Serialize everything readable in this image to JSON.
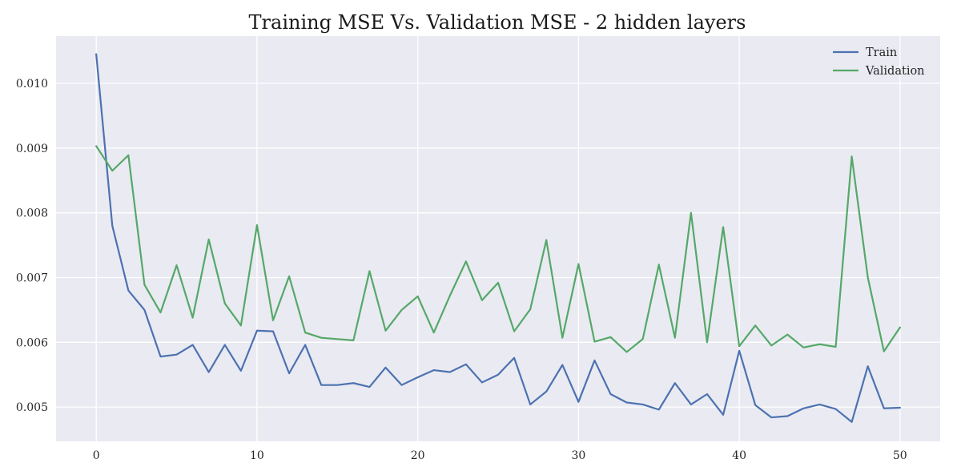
{
  "chart_data": {
    "type": "line",
    "title": "Training MSE Vs. Validation MSE - 2 hidden layers",
    "xlabel": "",
    "ylabel": "",
    "xlim": [
      -2.5,
      52.5
    ],
    "ylim": [
      0.00447,
      0.01073
    ],
    "x_ticks": [
      0,
      10,
      20,
      30,
      40,
      50
    ],
    "x_tick_labels": [
      "0",
      "10",
      "20",
      "30",
      "40",
      "50"
    ],
    "y_ticks": [
      0.005,
      0.006,
      0.007,
      0.008,
      0.009,
      0.01
    ],
    "y_tick_labels": [
      "0.005",
      "0.006",
      "0.007",
      "0.008",
      "0.009",
      "0.010"
    ],
    "grid": true,
    "legend_position": "top-right",
    "series": [
      {
        "name": "Train",
        "color": "#4c72b0",
        "x": [
          0,
          1,
          2,
          3,
          4,
          5,
          6,
          7,
          8,
          9,
          10,
          11,
          12,
          13,
          14,
          15,
          16,
          17,
          18,
          19,
          20,
          21,
          22,
          23,
          24,
          25,
          26,
          27,
          28,
          29,
          30,
          31,
          32,
          33,
          34,
          35,
          36,
          37,
          38,
          39,
          40,
          41,
          42,
          43,
          44,
          45,
          46,
          47,
          48,
          49,
          50
        ],
        "values": [
          0.01045,
          0.0078,
          0.0068,
          0.0065,
          0.00578,
          0.00581,
          0.00596,
          0.00554,
          0.00596,
          0.00556,
          0.00618,
          0.00617,
          0.00552,
          0.00596,
          0.00534,
          0.00534,
          0.00537,
          0.00531,
          0.00561,
          0.00534,
          0.00546,
          0.00557,
          0.00554,
          0.00566,
          0.00538,
          0.0055,
          0.00576,
          0.00504,
          0.00524,
          0.00565,
          0.00508,
          0.00572,
          0.0052,
          0.00507,
          0.00504,
          0.00496,
          0.00537,
          0.00504,
          0.0052,
          0.00488,
          0.00587,
          0.00503,
          0.00484,
          0.00486,
          0.00498,
          0.00504,
          0.00497,
          0.00477,
          0.00563,
          0.00498,
          0.00499
        ]
      },
      {
        "name": "Validation",
        "color": "#55a868",
        "x": [
          0,
          1,
          2,
          3,
          4,
          5,
          6,
          7,
          8,
          9,
          10,
          11,
          12,
          13,
          14,
          15,
          16,
          17,
          18,
          19,
          20,
          21,
          22,
          23,
          24,
          25,
          26,
          27,
          28,
          29,
          30,
          31,
          32,
          33,
          34,
          35,
          36,
          37,
          38,
          39,
          40,
          41,
          42,
          43,
          44,
          45,
          46,
          47,
          48,
          49,
          50
        ],
        "values": [
          0.00903,
          0.00865,
          0.00889,
          0.00689,
          0.00646,
          0.00719,
          0.00638,
          0.00759,
          0.0066,
          0.00626,
          0.00781,
          0.00634,
          0.00702,
          0.00615,
          0.00607,
          0.00605,
          0.00603,
          0.0071,
          0.00618,
          0.0065,
          0.00671,
          0.00615,
          0.00672,
          0.00725,
          0.00665,
          0.00692,
          0.00617,
          0.00651,
          0.00758,
          0.00607,
          0.00721,
          0.00601,
          0.00608,
          0.00585,
          0.00605,
          0.0072,
          0.00607,
          0.008,
          0.006,
          0.00778,
          0.00594,
          0.00626,
          0.00595,
          0.00612,
          0.00592,
          0.00597,
          0.00593,
          0.00887,
          0.007,
          0.00586,
          0.00623
        ]
      }
    ]
  }
}
